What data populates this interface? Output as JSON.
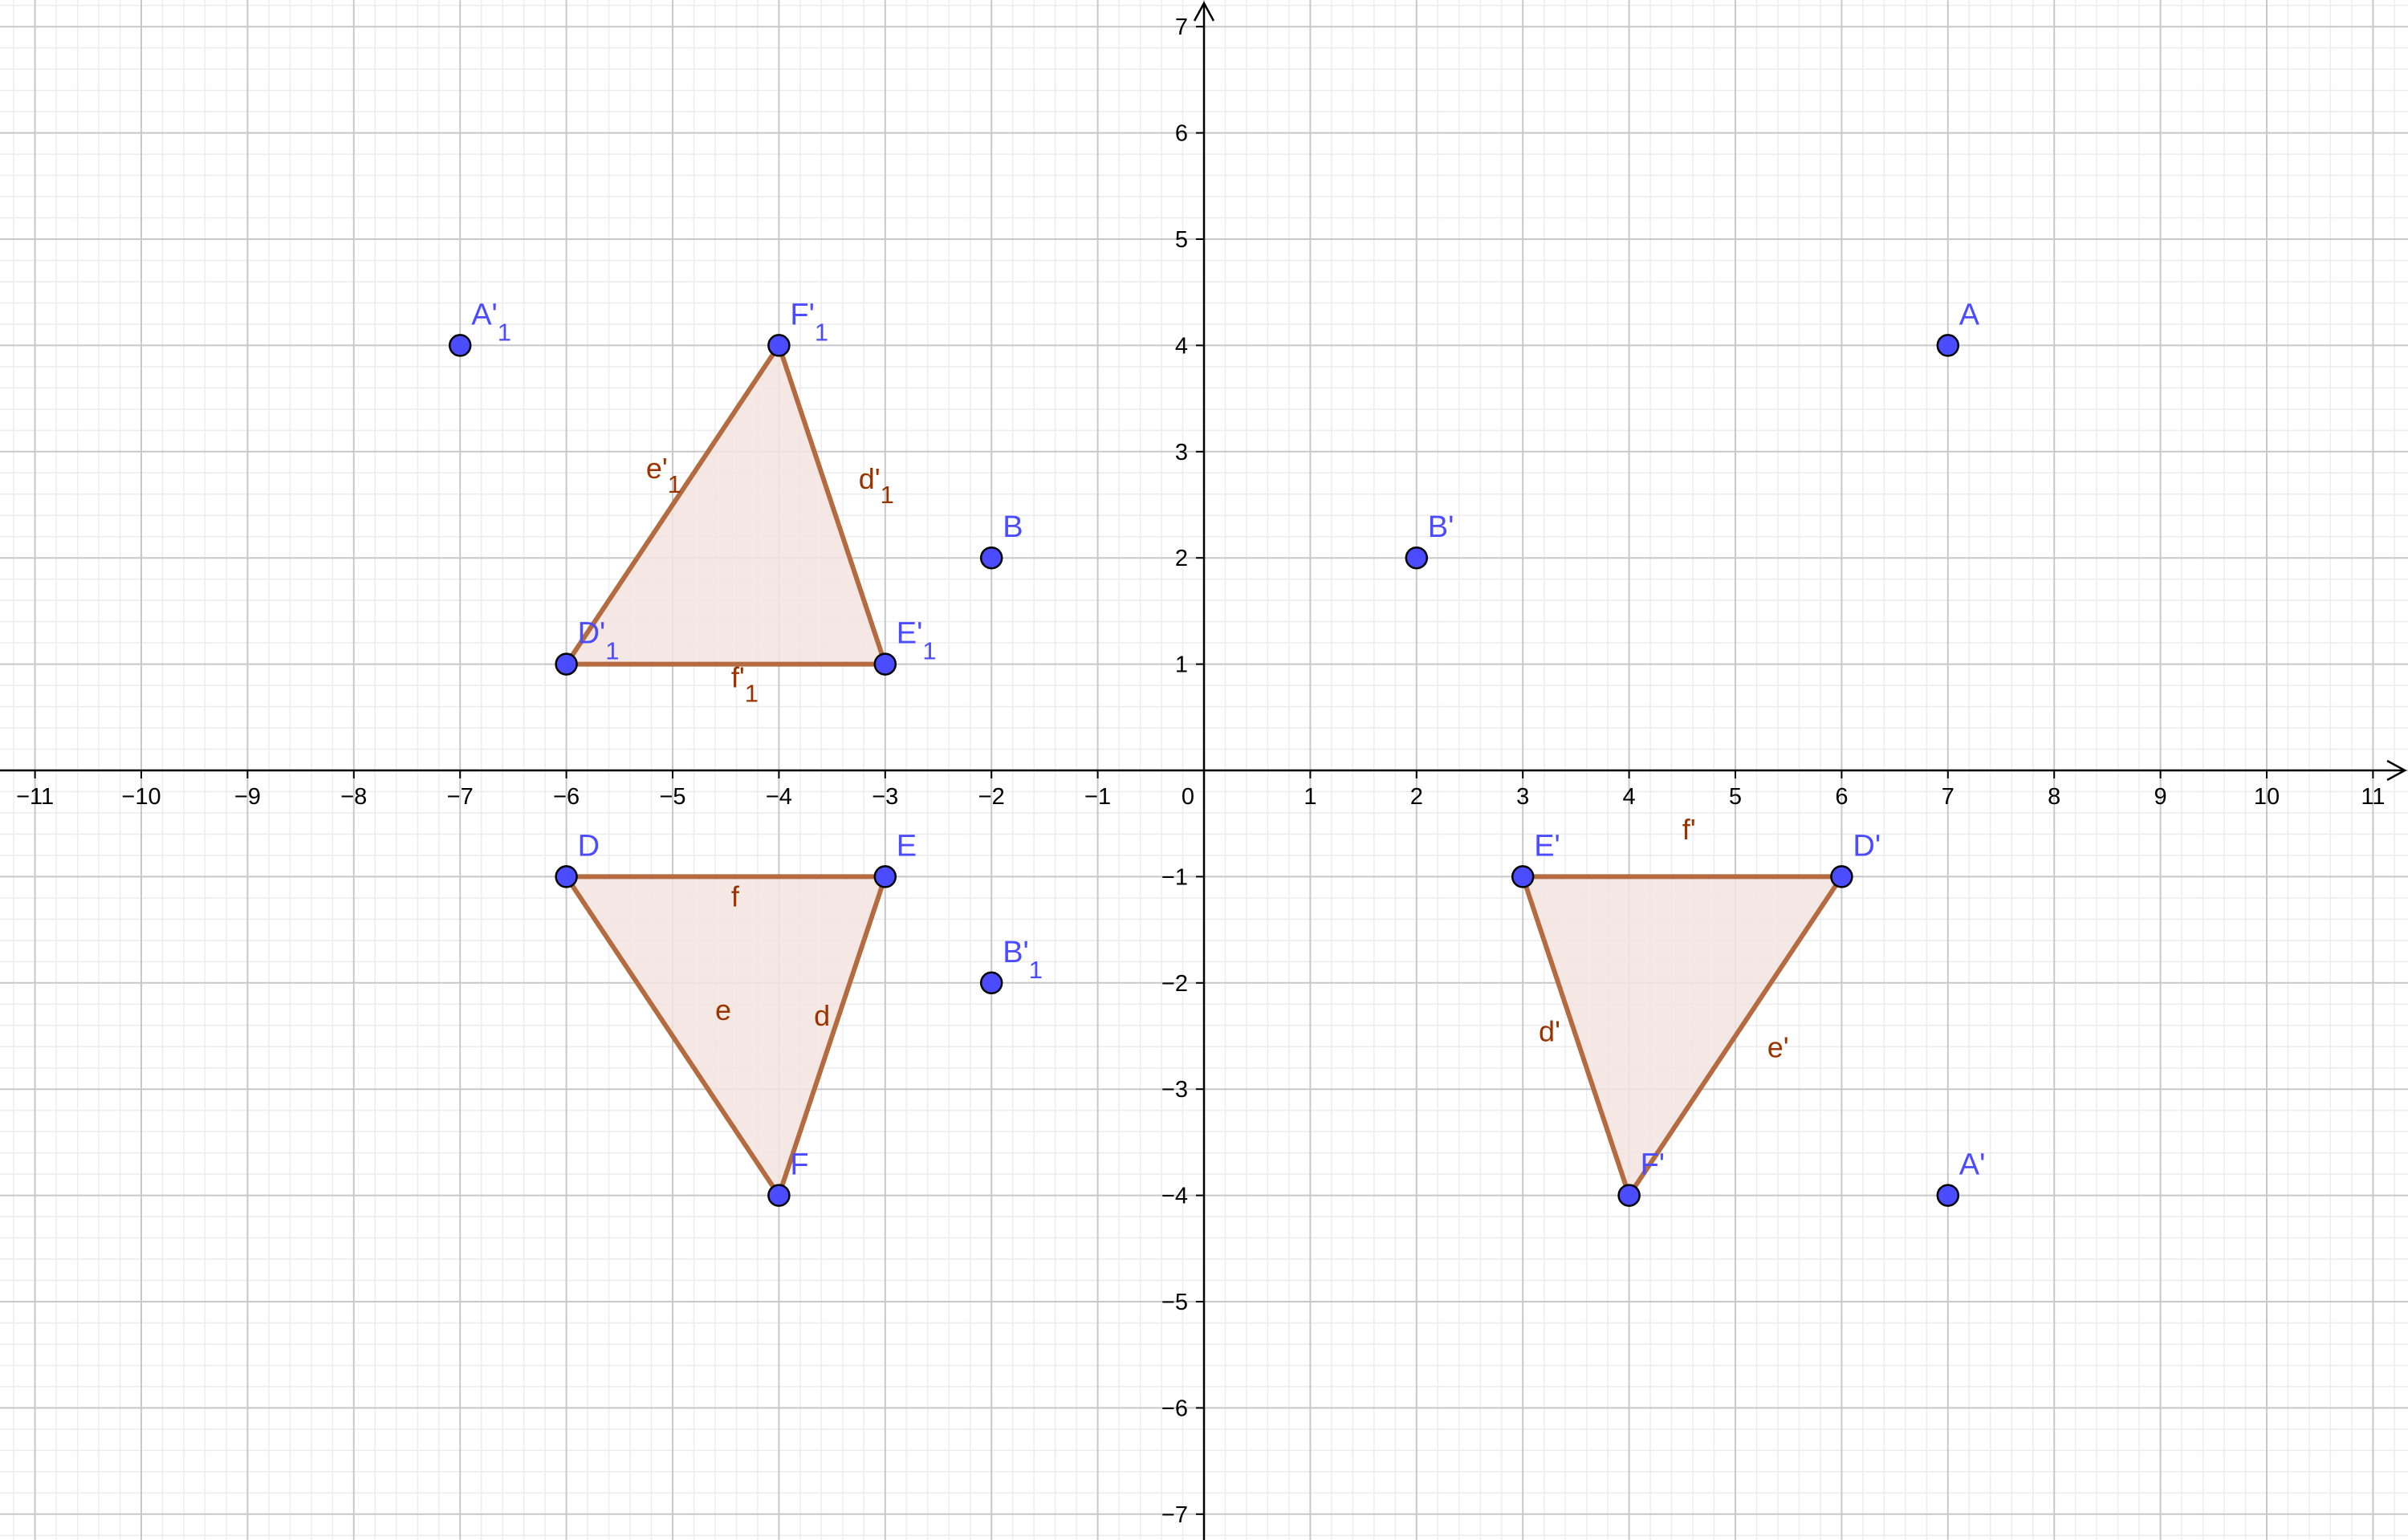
{
  "view": {
    "x_range": [
      -11.3,
      11.3
    ],
    "y_range": [
      -7.2,
      7.2
    ],
    "major_grid_step": 1,
    "minor_grid_step": 0.2,
    "grid": true
  },
  "axes": {
    "x_ticks": [
      "−11",
      "−10",
      "−9",
      "−8",
      "−7",
      "−6",
      "−5",
      "−4",
      "−3",
      "−2",
      "−1",
      "0",
      "1",
      "2",
      "3",
      "4",
      "5",
      "6",
      "7",
      "8",
      "9",
      "10",
      "11"
    ],
    "y_ticks": [
      "7",
      "6",
      "5",
      "4",
      "3",
      "2",
      "1",
      "−1",
      "−2",
      "−3",
      "−4",
      "−5",
      "−6",
      "−7"
    ]
  },
  "colors": {
    "point_fill": "#4b4bff",
    "point_stroke": "#000000",
    "point_label": "#4b4bff",
    "segment": "#b36b3f",
    "polygon_fill": "#f3e4df",
    "segment_label": "#993300",
    "grid_major": "#c8c8c8",
    "grid_minor": "#ececec",
    "axis": "#000000"
  },
  "points": [
    {
      "id": "A",
      "name": "A",
      "sub": "",
      "x": 7,
      "y": 4
    },
    {
      "id": "B",
      "name": "B",
      "sub": "",
      "x": -2,
      "y": 2
    },
    {
      "id": "Bp",
      "name": "B'",
      "sub": "",
      "x": 2,
      "y": 2
    },
    {
      "id": "Ap",
      "name": "A'",
      "sub": "",
      "x": 7,
      "y": -4
    },
    {
      "id": "A1",
      "name": "A'",
      "sub": "1",
      "x": -7,
      "y": 4
    },
    {
      "id": "B1",
      "name": "B'",
      "sub": "1",
      "x": -2,
      "y": -2
    },
    {
      "id": "D",
      "name": "D",
      "sub": "",
      "x": -6,
      "y": -1
    },
    {
      "id": "E",
      "name": "E",
      "sub": "",
      "x": -3,
      "y": -1
    },
    {
      "id": "F",
      "name": "F",
      "sub": "",
      "x": -4,
      "y": -4
    },
    {
      "id": "Dp",
      "name": "D'",
      "sub": "",
      "x": 6,
      "y": -1
    },
    {
      "id": "Ep",
      "name": "E'",
      "sub": "",
      "x": 3,
      "y": -1
    },
    {
      "id": "Fp",
      "name": "F'",
      "sub": "",
      "x": 4,
      "y": -4
    },
    {
      "id": "D1",
      "name": "D'",
      "sub": "1",
      "x": -6,
      "y": 1
    },
    {
      "id": "E1",
      "name": "E'",
      "sub": "1",
      "x": -3,
      "y": 1
    },
    {
      "id": "F1",
      "name": "F'",
      "sub": "1",
      "x": -4,
      "y": 4
    }
  ],
  "triangles": [
    {
      "id": "DEF",
      "vertices": [
        [
          -6,
          -1
        ],
        [
          -3,
          -1
        ],
        [
          -4,
          -4
        ]
      ]
    },
    {
      "id": "DpEpFp",
      "vertices": [
        [
          6,
          -1
        ],
        [
          3,
          -1
        ],
        [
          4,
          -4
        ]
      ]
    },
    {
      "id": "D1E1F1",
      "vertices": [
        [
          -6,
          1
        ],
        [
          -3,
          1
        ],
        [
          -4,
          4
        ]
      ]
    }
  ],
  "segment_labels": [
    {
      "name": "f",
      "sub": "",
      "x": -4.45,
      "y": -1.28
    },
    {
      "name": "e",
      "sub": "",
      "x": -4.6,
      "y": -2.35
    },
    {
      "name": "d",
      "sub": "",
      "x": -3.67,
      "y": -2.4
    },
    {
      "name": "f'",
      "sub": "",
      "x": 4.5,
      "y": -0.65
    },
    {
      "name": "d'",
      "sub": "",
      "x": 3.15,
      "y": -2.55
    },
    {
      "name": "e'",
      "sub": "",
      "x": 5.3,
      "y": -2.7
    },
    {
      "name": "e'",
      "sub": "1",
      "x": -5.25,
      "y": 2.75
    },
    {
      "name": "d'",
      "sub": "1",
      "x": -3.25,
      "y": 2.65
    },
    {
      "name": "f'",
      "sub": "1",
      "x": -4.45,
      "y": 0.78
    }
  ]
}
